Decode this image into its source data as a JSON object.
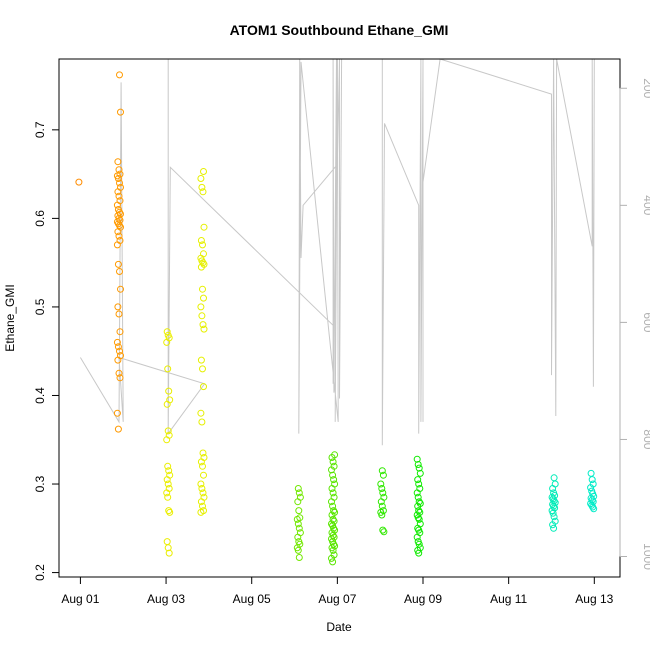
{
  "chart_data": {
    "type": "scatter",
    "title": "ATOM1 Southbound Ethane_GMI",
    "xlabel": "Date",
    "ylabel": "Ethane_GMI",
    "x_range_days": [
      -0.5,
      12.6
    ],
    "x_ticks": [
      {
        "day": 0,
        "label": "Aug 01"
      },
      {
        "day": 2,
        "label": "Aug 03"
      },
      {
        "day": 4,
        "label": "Aug 05"
      },
      {
        "day": 6,
        "label": "Aug 07"
      },
      {
        "day": 8,
        "label": "Aug 09"
      },
      {
        "day": 10,
        "label": "Aug 11"
      },
      {
        "day": 12,
        "label": "Aug 13"
      }
    ],
    "ylim": [
      0.195,
      0.78
    ],
    "y_ticks": [
      0.2,
      0.3,
      0.4,
      0.5,
      0.6,
      0.7
    ],
    "y2_label": "",
    "y2_range": [
      150,
      1035
    ],
    "y2_ticks": [
      200,
      400,
      600,
      800,
      1000
    ],
    "y2_tick_color": "#b0b0b0",
    "line_color": "#c8c8c8",
    "clusters": [
      {
        "date": "Aug 01",
        "x": 0.0,
        "color": "#ff8c00",
        "values": [
          0.641
        ]
      },
      {
        "date": "Aug 02",
        "x": 0.9,
        "color": "#ff9a00",
        "values": [
          0.762,
          0.72,
          0.664,
          0.655,
          0.65,
          0.648,
          0.645,
          0.64,
          0.635,
          0.63,
          0.625,
          0.62,
          0.615,
          0.61,
          0.607,
          0.605,
          0.603,
          0.6,
          0.598,
          0.596,
          0.594,
          0.592,
          0.59,
          0.585,
          0.58,
          0.575,
          0.57,
          0.548,
          0.54,
          0.52,
          0.5,
          0.492,
          0.472,
          0.46,
          0.455,
          0.45,
          0.445,
          0.44,
          0.425,
          0.42,
          0.38,
          0.362
        ]
      },
      {
        "date": "Aug 03",
        "x": 2.05,
        "color": "#eaee00",
        "values": [
          0.472,
          0.468,
          0.465,
          0.46,
          0.43,
          0.405,
          0.395,
          0.39,
          0.36,
          0.355,
          0.35,
          0.32,
          0.315,
          0.31,
          0.305,
          0.3,
          0.295,
          0.29,
          0.285,
          0.27,
          0.268,
          0.235,
          0.228,
          0.222
        ]
      },
      {
        "date": "Aug 03",
        "x": 2.85,
        "color": "#e6f000",
        "values": [
          0.653,
          0.645,
          0.635,
          0.63,
          0.59,
          0.575,
          0.57,
          0.56,
          0.555,
          0.552,
          0.55,
          0.548,
          0.545,
          0.52,
          0.51,
          0.5,
          0.49,
          0.48,
          0.475,
          0.44,
          0.43,
          0.41,
          0.38,
          0.37,
          0.335,
          0.33,
          0.325,
          0.32,
          0.31,
          0.3,
          0.295,
          0.29,
          0.285,
          0.28,
          0.275,
          0.27,
          0.268
        ]
      },
      {
        "date": "Aug 06",
        "x": 5.1,
        "color": "#72e800",
        "values": [
          0.295,
          0.29,
          0.285,
          0.28,
          0.27,
          0.262,
          0.26,
          0.255,
          0.25,
          0.245,
          0.24,
          0.235,
          0.232,
          0.228,
          0.225,
          0.217
        ]
      },
      {
        "date": "Aug 07",
        "x": 5.9,
        "color": "#5ae600",
        "values": [
          0.333,
          0.33,
          0.325,
          0.32,
          0.316,
          0.31,
          0.305,
          0.3,
          0.295,
          0.29,
          0.285,
          0.28,
          0.275,
          0.27,
          0.268,
          0.265,
          0.26,
          0.258,
          0.255,
          0.253,
          0.25,
          0.248,
          0.245,
          0.242,
          0.24,
          0.238,
          0.235,
          0.232,
          0.23,
          0.228,
          0.225,
          0.22,
          0.216,
          0.212
        ]
      },
      {
        "date": "Aug 08",
        "x": 7.05,
        "color": "#30e800",
        "values": [
          0.315,
          0.31,
          0.3,
          0.295,
          0.29,
          0.285,
          0.28,
          0.275,
          0.27,
          0.268,
          0.265,
          0.248,
          0.246
        ]
      },
      {
        "date": "Aug 09",
        "x": 7.9,
        "color": "#10ea00",
        "values": [
          0.328,
          0.322,
          0.318,
          0.312,
          0.305,
          0.3,
          0.295,
          0.29,
          0.285,
          0.28,
          0.278,
          0.275,
          0.27,
          0.268,
          0.265,
          0.262,
          0.26,
          0.255,
          0.25,
          0.248,
          0.245,
          0.24,
          0.235,
          0.232,
          0.228,
          0.225,
          0.222
        ]
      },
      {
        "date": "Aug 12",
        "x": 11.05,
        "color": "#00ecb8",
        "values": [
          0.307,
          0.3,
          0.295,
          0.29,
          0.287,
          0.285,
          0.283,
          0.281,
          0.279,
          0.277,
          0.275,
          0.273,
          0.27,
          0.267,
          0.263,
          0.258,
          0.254,
          0.25
        ]
      },
      {
        "date": "Aug 12",
        "x": 11.95,
        "color": "#00ecc8",
        "values": [
          0.312,
          0.305,
          0.3,
          0.296,
          0.292,
          0.289,
          0.286,
          0.284,
          0.282,
          0.28,
          0.278,
          0.276,
          0.274,
          0.272
        ]
      }
    ],
    "pressure_track": [
      [
        0.0,
        660
      ],
      [
        0.9,
        770
      ],
      [
        0.95,
        190
      ],
      [
        1.0,
        770
      ],
      [
        0.9,
        660
      ],
      [
        2.9,
        705
      ],
      [
        2.05,
        790
      ],
      [
        2.05,
        150
      ],
      [
        2.05,
        790
      ],
      [
        2.1,
        335
      ],
      [
        5.9,
        605
      ],
      [
        5.9,
        705
      ],
      [
        5.9,
        150
      ],
      [
        5.92,
        720
      ],
      [
        5.98,
        150
      ],
      [
        5.95,
        770
      ],
      [
        6.0,
        150
      ],
      [
        6.02,
        770
      ],
      [
        5.15,
        155
      ],
      [
        5.1,
        790
      ],
      [
        5.12,
        150
      ],
      [
        5.15,
        490
      ],
      [
        5.2,
        400
      ],
      [
        6.0,
        330
      ],
      [
        6.05,
        150
      ],
      [
        6.05,
        730
      ],
      [
        6.1,
        150
      ],
      [
        7.05,
        150
      ],
      [
        7.05,
        810
      ],
      [
        7.1,
        260
      ],
      [
        7.9,
        400
      ],
      [
        7.9,
        790
      ],
      [
        7.95,
        150
      ],
      [
        7.95,
        770
      ],
      [
        8.0,
        150
      ],
      [
        8.0,
        770
      ],
      [
        8.0,
        360
      ],
      [
        8.4,
        150
      ],
      [
        11.0,
        210
      ],
      [
        11.0,
        690
      ],
      [
        11.05,
        150
      ],
      [
        11.1,
        760
      ],
      [
        11.12,
        150
      ],
      [
        11.95,
        470
      ],
      [
        11.95,
        150
      ],
      [
        11.98,
        710
      ],
      [
        12.0,
        150
      ]
    ]
  }
}
